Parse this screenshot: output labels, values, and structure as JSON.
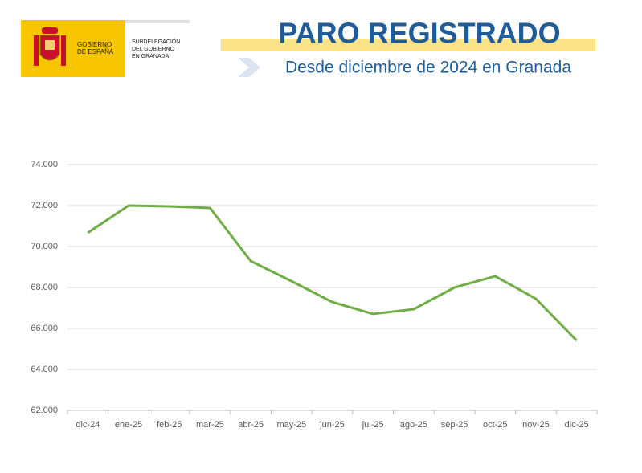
{
  "header": {
    "logo_left": [
      "GOBIERNO",
      "DE ESPAÑA"
    ],
    "logo_right": [
      "SUBDELEGACIÓN",
      "DEL GOBIERNO",
      "EN GRANADA"
    ]
  },
  "chart_data": {
    "type": "line",
    "title": "PARO REGISTRADO",
    "subtitle": "Desde diciembre de 2024 en Granada",
    "categories": [
      "dic-24",
      "ene-25",
      "feb-25",
      "mar-25",
      "abr-25",
      "may-25",
      "jun-25",
      "jul-25",
      "ago-25",
      "sep-25",
      "oct-25",
      "nov-25",
      "dic-25"
    ],
    "series": [
      {
        "name": "Paro registrado",
        "color": "#70ad47",
        "values": [
          70670,
          72000,
          71960,
          71880,
          69290,
          68310,
          67290,
          66710,
          66940,
          68000,
          68550,
          67450,
          65410
        ]
      }
    ],
    "ylim": [
      62000,
      74000
    ],
    "yticks": [
      {
        "value": 62000,
        "label": "62.000"
      },
      {
        "value": 64000,
        "label": "64.000"
      },
      {
        "value": 66000,
        "label": "66.000"
      },
      {
        "value": 68000,
        "label": "68.000"
      },
      {
        "value": 70000,
        "label": "70.000"
      },
      {
        "value": 72000,
        "label": "72.000"
      },
      {
        "value": 74000,
        "label": "74.000"
      }
    ],
    "grid": true
  }
}
